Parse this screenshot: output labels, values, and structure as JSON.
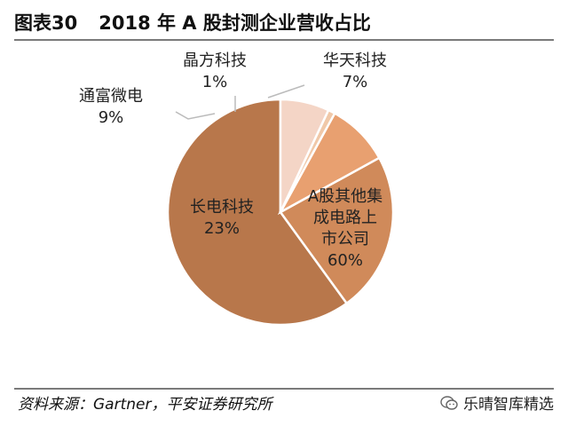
{
  "header": {
    "figure_no": "图表30",
    "title": "2018 年 A 股封测企业营收占比"
  },
  "footer": {
    "source": "资料来源：Gartner，平安证券研究所",
    "brand": "乐晴智库精选"
  },
  "chart_data": {
    "type": "pie",
    "title": "2018 年 A 股封测企业营收占比",
    "slices": [
      {
        "name": "A股其他集成电路上市公司",
        "label_lines": [
          "A股其他集",
          "成电路上",
          "市公司"
        ],
        "pct_label": "60%",
        "value": 60,
        "color": "#b8774b"
      },
      {
        "name": "长电科技",
        "label_lines": [
          "长电科技"
        ],
        "pct_label": "23%",
        "value": 23,
        "color": "#d08a5a"
      },
      {
        "name": "通富微电",
        "label_lines": [
          "通富微电"
        ],
        "pct_label": "9%",
        "value": 9,
        "color": "#e8a070"
      },
      {
        "name": "晶方科技",
        "label_lines": [
          "晶方科技"
        ],
        "pct_label": "1%",
        "value": 1,
        "color": "#f0c8a8"
      },
      {
        "name": "华天科技",
        "label_lines": [
          "华天科技"
        ],
        "pct_label": "7%",
        "value": 7,
        "color": "#f4d5c6"
      }
    ],
    "start": "12 o'clock",
    "direction": "counter-clockwise"
  }
}
